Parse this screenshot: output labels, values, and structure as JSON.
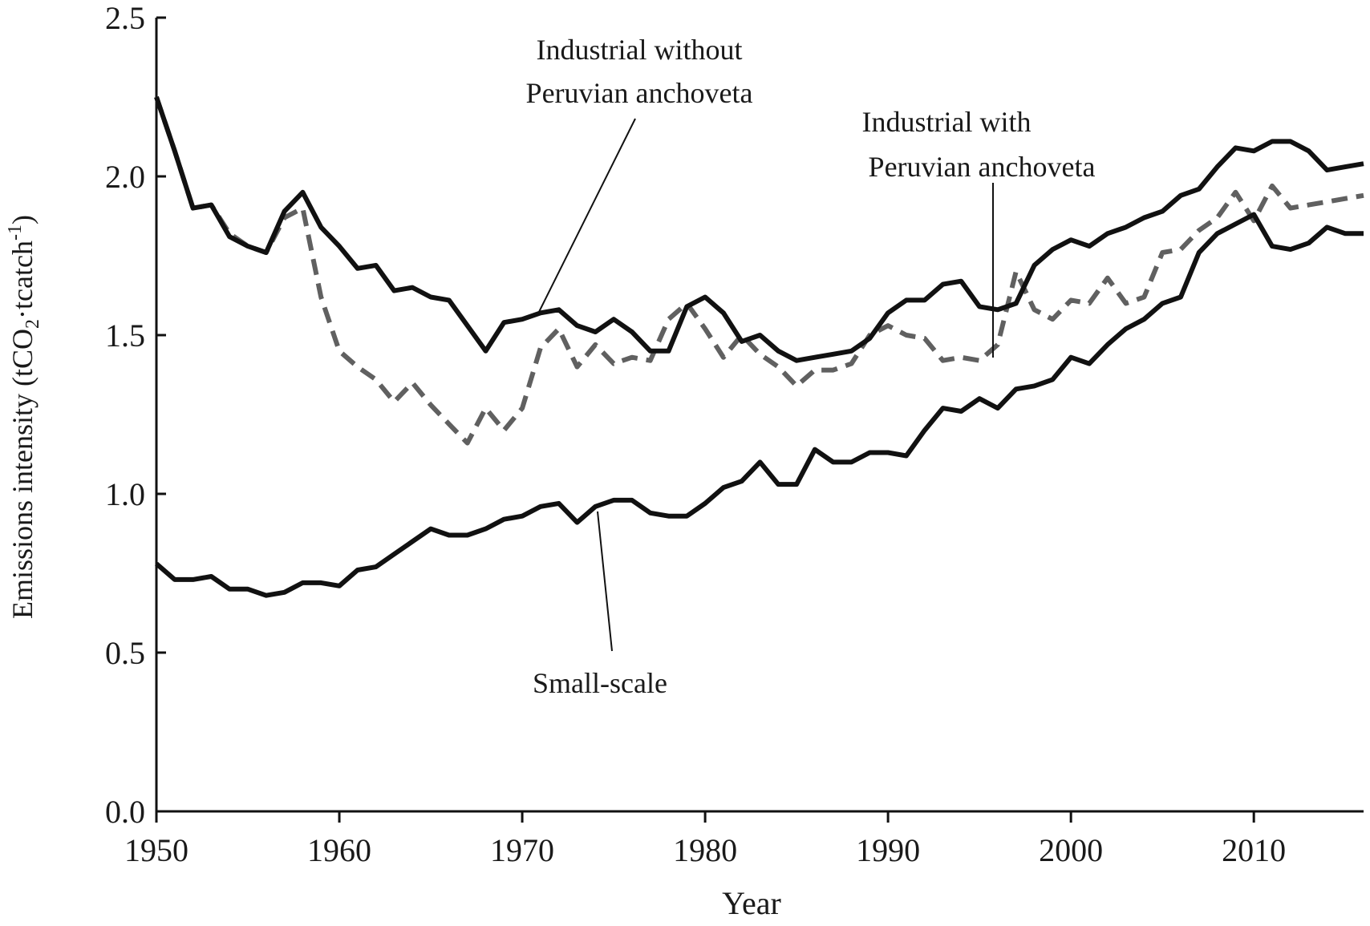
{
  "chart_data": {
    "type": "line",
    "xlabel": "Year",
    "ylabel": "Emissions intensity (tCO2·tcatch-1)",
    "ylabel_parts": {
      "before_sub": "Emissions intensity (tCO",
      "sub": "2",
      "middle": "·tcatch",
      "sup": "-1",
      "after": ")"
    },
    "xlim": [
      1950,
      2016
    ],
    "ylim": [
      0.0,
      2.5
    ],
    "x_ticks": [
      1950,
      1960,
      1970,
      1980,
      1990,
      2000,
      2010
    ],
    "y_ticks": [
      "0.0",
      "0.5",
      "1.0",
      "1.5",
      "2.0",
      "2.5"
    ],
    "grid": false,
    "annotations": {
      "without_line1": "Industrial without",
      "without_line2": "Peruvian anchoveta",
      "with_line1": "Industrial with",
      "with_line2": "Peruvian anchoveta",
      "small_scale": "Small-scale"
    },
    "x": [
      1950,
      1951,
      1952,
      1953,
      1954,
      1955,
      1956,
      1957,
      1958,
      1959,
      1960,
      1961,
      1962,
      1963,
      1964,
      1965,
      1966,
      1967,
      1968,
      1969,
      1970,
      1971,
      1972,
      1973,
      1974,
      1975,
      1976,
      1977,
      1978,
      1979,
      1980,
      1981,
      1982,
      1983,
      1984,
      1985,
      1986,
      1987,
      1988,
      1989,
      1990,
      1991,
      1992,
      1993,
      1994,
      1995,
      1996,
      1997,
      1998,
      1999,
      2000,
      2001,
      2002,
      2003,
      2004,
      2005,
      2006,
      2007,
      2008,
      2009,
      2010,
      2011,
      2012,
      2013,
      2014,
      2015,
      2016
    ],
    "series": [
      {
        "name": "Industrial without Peruvian anchoveta",
        "color": "#111111",
        "dash": "solid",
        "values": [
          2.25,
          2.08,
          1.9,
          1.91,
          1.81,
          1.78,
          1.76,
          1.89,
          1.95,
          1.84,
          1.78,
          1.71,
          1.72,
          1.64,
          1.65,
          1.62,
          1.61,
          1.53,
          1.45,
          1.54,
          1.55,
          1.57,
          1.58,
          1.53,
          1.51,
          1.55,
          1.51,
          1.45,
          1.45,
          1.59,
          1.62,
          1.57,
          1.48,
          1.5,
          1.45,
          1.42,
          1.43,
          1.44,
          1.45,
          1.49,
          1.57,
          1.61,
          1.61,
          1.66,
          1.67,
          1.59,
          1.58,
          1.6,
          1.72,
          1.77,
          1.8,
          1.78,
          1.82,
          1.84,
          1.87,
          1.89,
          1.94,
          1.96,
          2.03,
          2.09,
          2.08,
          2.11,
          2.11,
          2.08,
          2.02,
          2.03,
          2.04
        ]
      },
      {
        "name": "Industrial with Peruvian anchoveta",
        "color": "#606060",
        "dash": "dashed",
        "values": [
          2.25,
          2.08,
          1.9,
          1.91,
          1.82,
          1.78,
          1.76,
          1.87,
          1.9,
          1.62,
          1.45,
          1.4,
          1.36,
          1.29,
          1.35,
          1.28,
          1.22,
          1.16,
          1.27,
          1.2,
          1.27,
          1.46,
          1.52,
          1.4,
          1.47,
          1.41,
          1.43,
          1.42,
          1.55,
          1.6,
          1.52,
          1.43,
          1.5,
          1.44,
          1.4,
          1.34,
          1.39,
          1.39,
          1.41,
          1.5,
          1.53,
          1.5,
          1.49,
          1.42,
          1.43,
          1.42,
          1.47,
          1.7,
          1.58,
          1.55,
          1.61,
          1.6,
          1.68,
          1.6,
          1.62,
          1.76,
          1.77,
          1.83,
          1.87,
          1.95,
          1.86,
          1.97,
          1.9,
          1.91,
          1.92,
          1.93,
          1.94
        ]
      },
      {
        "name": "Small-scale",
        "color": "#111111",
        "dash": "solid",
        "values": [
          0.78,
          0.73,
          0.73,
          0.74,
          0.7,
          0.7,
          0.68,
          0.69,
          0.72,
          0.72,
          0.71,
          0.76,
          0.77,
          0.81,
          0.85,
          0.89,
          0.87,
          0.87,
          0.89,
          0.92,
          0.93,
          0.96,
          0.97,
          0.91,
          0.96,
          0.98,
          0.98,
          0.94,
          0.93,
          0.93,
          0.97,
          1.02,
          1.04,
          1.1,
          1.03,
          1.03,
          1.14,
          1.1,
          1.1,
          1.13,
          1.13,
          1.12,
          1.2,
          1.27,
          1.26,
          1.3,
          1.27,
          1.33,
          1.34,
          1.36,
          1.43,
          1.41,
          1.47,
          1.52,
          1.55,
          1.6,
          1.62,
          1.76,
          1.82,
          1.85,
          1.88,
          1.78,
          1.77,
          1.79,
          1.84,
          1.82,
          1.82
        ]
      }
    ]
  }
}
